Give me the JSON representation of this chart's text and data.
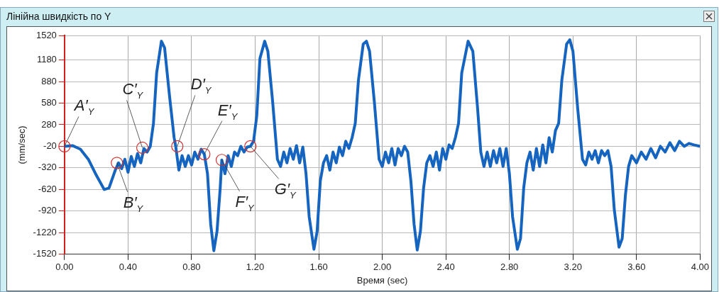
{
  "chart_data": {
    "type": "line",
    "title": "Лінійна швидкість по Y",
    "xlabel": "Время (sec)",
    "ylabel": "(mm/sec)",
    "x": [
      0,
      0.05,
      0.1,
      0.15,
      0.2,
      0.25,
      0.28,
      0.32,
      0.34,
      0.36,
      0.38,
      0.4,
      0.42,
      0.44,
      0.46,
      0.48,
      0.5,
      0.52,
      0.54,
      0.56,
      0.58,
      0.61,
      0.63,
      0.66,
      0.69,
      0.7,
      0.72,
      0.74,
      0.76,
      0.78,
      0.8,
      0.82,
      0.84,
      0.86,
      0.88,
      0.9,
      0.92,
      0.94,
      0.96,
      0.98,
      0.99,
      1.01,
      1.03,
      1.05,
      1.07,
      1.09,
      1.11,
      1.13,
      1.15,
      1.17,
      1.19,
      1.21,
      1.23,
      1.26,
      1.28,
      1.31,
      1.34,
      1.36,
      1.38,
      1.4,
      1.42,
      1.44,
      1.46,
      1.48,
      1.5,
      1.52,
      1.54,
      1.57,
      1.59,
      1.61,
      1.63,
      1.65,
      1.67,
      1.69,
      1.71,
      1.73,
      1.75,
      1.77,
      1.79,
      1.81,
      1.83,
      1.85,
      1.88,
      1.9,
      1.92,
      1.95,
      1.98,
      2,
      2.02,
      2.04,
      2.06,
      2.08,
      2.1,
      2.12,
      2.14,
      2.16,
      2.18,
      2.2,
      2.22,
      2.24,
      2.26,
      2.28,
      2.3,
      2.32,
      2.34,
      2.36,
      2.38,
      2.4,
      2.42,
      2.44,
      2.46,
      2.48,
      2.5,
      2.54,
      2.57,
      2.6,
      2.62,
      2.64,
      2.66,
      2.68,
      2.7,
      2.72,
      2.74,
      2.76,
      2.78,
      2.8,
      2.82,
      2.85,
      2.87,
      2.89,
      2.91,
      2.93,
      2.95,
      2.97,
      2.99,
      3.01,
      3.03,
      3.05,
      3.07,
      3.09,
      3.11,
      3.13,
      3.16,
      3.18,
      3.2,
      3.23,
      3.26,
      3.28,
      3.3,
      3.32,
      3.34,
      3.36,
      3.38,
      3.4,
      3.42,
      3.44,
      3.46,
      3.49,
      3.51,
      3.53,
      3.55,
      3.57,
      3.6,
      3.63,
      3.66,
      3.69,
      3.72,
      3.75,
      3.78,
      3.81,
      3.84,
      3.87,
      3.9,
      3.93,
      3.96,
      4
    ],
    "series": [
      {
        "color": "#1565c0",
        "values": [
          -20,
          -10,
          -60,
          -200,
          -420,
          -620,
          -600,
          -350,
          -250,
          -330,
          -200,
          -380,
          -160,
          -300,
          -120,
          -250,
          -50,
          -100,
          -20,
          300,
          1000,
          1440,
          1350,
          700,
          100,
          -20,
          -350,
          -150,
          -300,
          -150,
          -280,
          -100,
          -200,
          -60,
          -130,
          -400,
          -1100,
          -1470,
          -1200,
          -600,
          -210,
          -400,
          -150,
          -300,
          -100,
          -150,
          -20,
          -100,
          -30,
          -20,
          50,
          400,
          1200,
          1440,
          1300,
          600,
          -200,
          -300,
          -100,
          -250,
          -50,
          -200,
          -10,
          -250,
          -30,
          -400,
          -1000,
          -1450,
          -1200,
          -500,
          -250,
          -150,
          -350,
          -100,
          -250,
          -30,
          -150,
          50,
          -50,
          100,
          300,
          900,
          1400,
          1440,
          1300,
          600,
          -200,
          -300,
          -100,
          -250,
          -50,
          -280,
          -50,
          -150,
          -20,
          -100,
          -500,
          -1100,
          -1460,
          -1200,
          -600,
          -250,
          -150,
          -300,
          -100,
          -350,
          -50,
          -200,
          0,
          -50,
          100,
          300,
          1000,
          1440,
          1300,
          500,
          -100,
          -300,
          -100,
          -300,
          -80,
          -250,
          -50,
          -300,
          -50,
          -400,
          -1000,
          -1450,
          -1300,
          -600,
          -250,
          -100,
          -350,
          -50,
          -300,
          0,
          -250,
          100,
          -100,
          200,
          300,
          900,
          1400,
          1460,
          1300,
          500,
          -200,
          -280,
          -100,
          -200,
          -80,
          -250,
          -80,
          -150,
          -80,
          -300,
          -900,
          -1420,
          -1300,
          -700,
          -300,
          -150,
          -250,
          -100,
          -200,
          -50,
          -180,
          -20,
          -100,
          30,
          -80,
          50,
          -20,
          20,
          0,
          -20
        ]
      }
    ],
    "xlim": [
      0,
      4
    ],
    "xticks": [
      {
        "value": 0,
        "label": "0.00"
      },
      {
        "value": 0.4,
        "label": "0.40"
      },
      {
        "value": 0.8,
        "label": "0.80"
      },
      {
        "value": 1.2,
        "label": "1.20"
      },
      {
        "value": 1.6,
        "label": "1.60"
      },
      {
        "value": 2,
        "label": "2.00"
      },
      {
        "value": 2.4,
        "label": "2.40"
      },
      {
        "value": 2.8,
        "label": "2.80"
      },
      {
        "value": 3.2,
        "label": "3.20"
      },
      {
        "value": 3.6,
        "label": "3.60"
      },
      {
        "value": 4,
        "label": "4.00"
      }
    ],
    "ylim": [
      -1520,
      1520
    ],
    "yticks": [
      -1520,
      -1220,
      -920,
      -620,
      -320,
      -20,
      280,
      580,
      880,
      1180,
      1520
    ],
    "grid": true,
    "legend": false,
    "marker": "none",
    "line_style": "solid",
    "annotations": [
      {
        "text": "A′$_{Y}$",
        "x": 0,
        "y": -20
      },
      {
        "text": "B′$_{Y}$",
        "x": 0.33,
        "y": -250
      },
      {
        "text": "C′$_{Y}$",
        "x": 0.49,
        "y": -40
      },
      {
        "text": "D′$_{Y}$",
        "x": 0.71,
        "y": -20
      },
      {
        "text": "E′$_{Y}$",
        "x": 0.88,
        "y": -130
      },
      {
        "text": "F′$_{Y}$",
        "x": 0.99,
        "y": -210
      },
      {
        "text": "G′$_{Y}$",
        "x": 1.17,
        "y": -20
      }
    ]
  }
}
